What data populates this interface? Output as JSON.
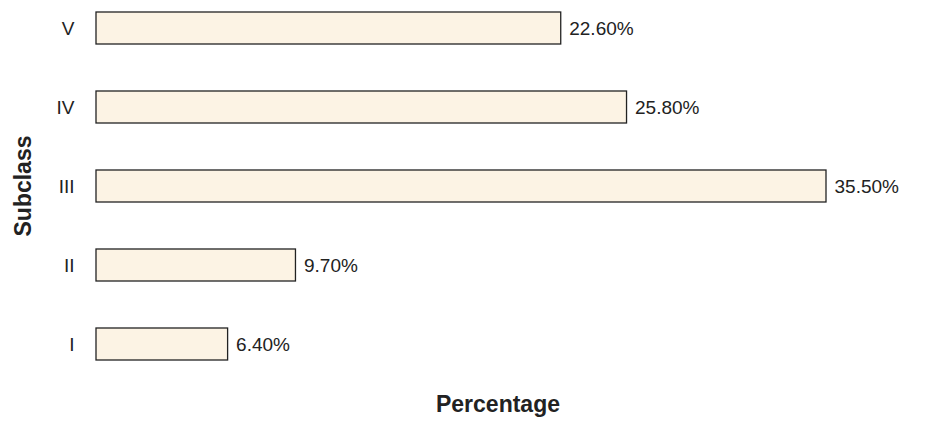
{
  "chart_data": {
    "type": "bar",
    "orientation": "horizontal",
    "xlabel": "Percentage",
    "ylabel": "Subclass",
    "categories": [
      "V",
      "IV",
      "III",
      "II",
      "I"
    ],
    "values": [
      22.6,
      25.8,
      35.5,
      9.7,
      6.4
    ],
    "value_labels": [
      "22.60%",
      "25.80%",
      "35.50%",
      "9.70%",
      "6.40%"
    ],
    "data_labels": true,
    "tick_labels": "y",
    "grid": false,
    "color": "#fcf3e4"
  }
}
